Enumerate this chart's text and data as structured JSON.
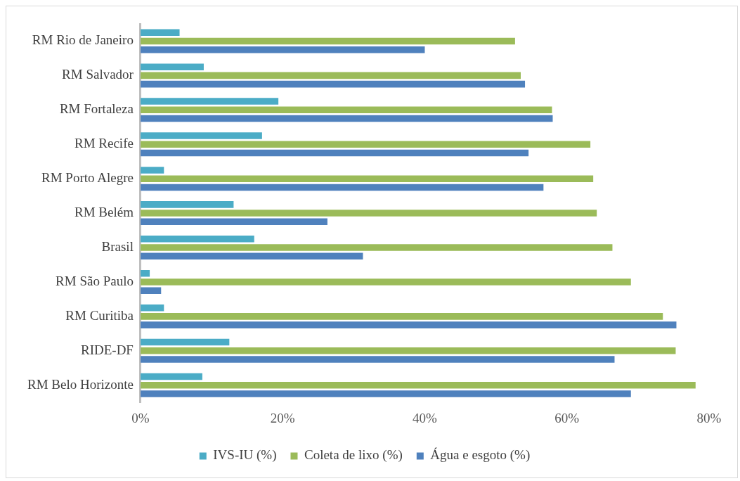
{
  "chart_data": {
    "type": "bar",
    "orientation": "horizontal",
    "categories": [
      "RM Rio de Janeiro",
      "RM Salvador",
      "RM Fortaleza",
      "RM Recife",
      "RM Porto Alegre",
      "RM Belém",
      "Brasil",
      "RM São Paulo",
      "RM Curitiba",
      "RIDE-DF",
      "RM Belo Horizonte"
    ],
    "series": [
      {
        "name": "IVS-IU (%)",
        "color": "#4bacc6",
        "values": [
          5.5,
          8.9,
          19.4,
          17.1,
          3.3,
          13.1,
          16.0,
          1.3,
          3.3,
          12.5,
          8.7
        ]
      },
      {
        "name": "Coleta de lixo (%)",
        "color": "#9bbb59",
        "values": [
          52.7,
          53.5,
          57.9,
          63.3,
          63.7,
          64.2,
          66.4,
          69.0,
          73.5,
          75.3,
          78.1
        ]
      },
      {
        "name": "Água e esgoto (%)",
        "color": "#4f81bd",
        "values": [
          40.0,
          54.1,
          58.0,
          54.6,
          56.7,
          26.3,
          31.3,
          2.9,
          75.4,
          66.7,
          69.0
        ]
      }
    ],
    "xlim": [
      0,
      80
    ],
    "xticks": [
      {
        "value": 0,
        "label": "0%"
      },
      {
        "value": 20,
        "label": "20%"
      },
      {
        "value": 40,
        "label": "40%"
      },
      {
        "value": 60,
        "label": "60%"
      },
      {
        "value": 80,
        "label": "80%"
      }
    ],
    "grid": false,
    "legend": "bottom"
  }
}
